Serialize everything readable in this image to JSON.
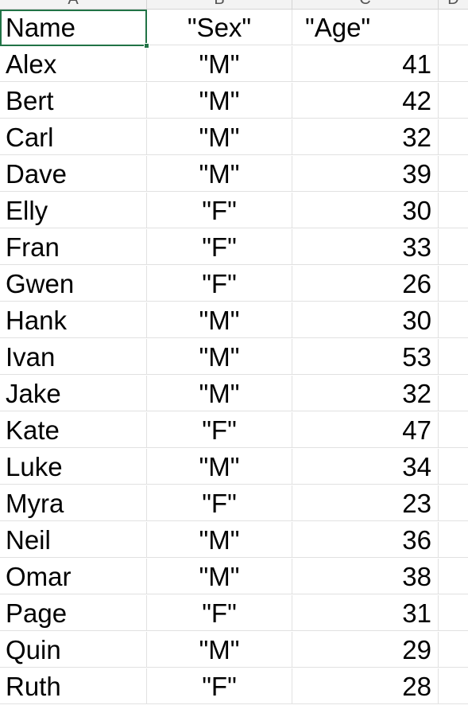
{
  "columns": [
    "A",
    "B",
    "C",
    "D"
  ],
  "header": {
    "name": "Name",
    "sex": "\"Sex\"",
    "age": "\"Age\""
  },
  "rows": [
    {
      "name": "Alex",
      "sex": "\"M\"",
      "age": "41"
    },
    {
      "name": "Bert",
      "sex": "\"M\"",
      "age": "42"
    },
    {
      "name": "Carl",
      "sex": "\"M\"",
      "age": "32"
    },
    {
      "name": "Dave",
      "sex": "\"M\"",
      "age": "39"
    },
    {
      "name": "Elly",
      "sex": "\"F\"",
      "age": "30"
    },
    {
      "name": "Fran",
      "sex": "\"F\"",
      "age": "33"
    },
    {
      "name": "Gwen",
      "sex": "\"F\"",
      "age": "26"
    },
    {
      "name": "Hank",
      "sex": "\"M\"",
      "age": "30"
    },
    {
      "name": "Ivan",
      "sex": "\"M\"",
      "age": "53"
    },
    {
      "name": "Jake",
      "sex": "\"M\"",
      "age": "32"
    },
    {
      "name": "Kate",
      "sex": "\"F\"",
      "age": "47"
    },
    {
      "name": "Luke",
      "sex": "\"M\"",
      "age": "34"
    },
    {
      "name": "Myra",
      "sex": "\"F\"",
      "age": "23"
    },
    {
      "name": "Neil",
      "sex": "\"M\"",
      "age": "36"
    },
    {
      "name": "Omar",
      "sex": "\"M\"",
      "age": "38"
    },
    {
      "name": "Page",
      "sex": "\"F\"",
      "age": "31"
    },
    {
      "name": "Quin",
      "sex": "\"M\"",
      "age": "29"
    },
    {
      "name": "Ruth",
      "sex": "\"F\"",
      "age": "28"
    }
  ],
  "selection": {
    "cell": "A1",
    "border_color": "#217346"
  }
}
